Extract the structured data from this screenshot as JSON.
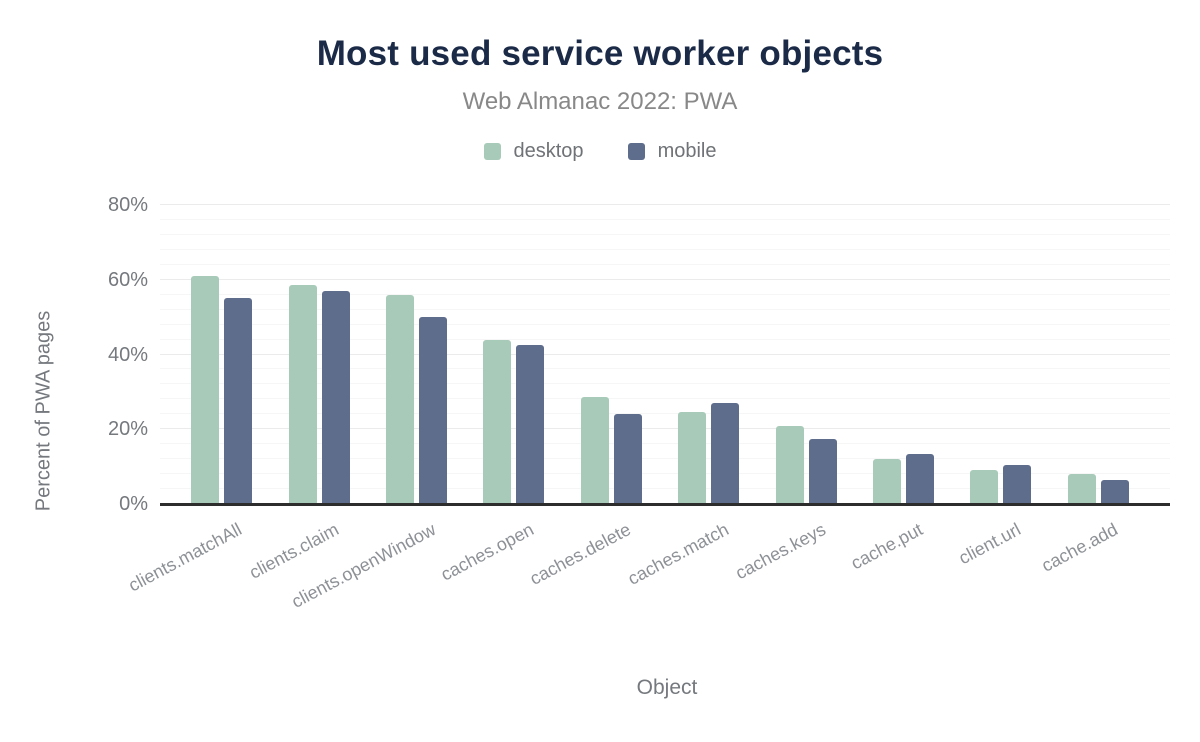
{
  "header": {
    "title": "Most used service worker objects",
    "subtitle": "Web Almanac 2022: PWA"
  },
  "palette": {
    "title_text": "#1b2a47",
    "subtitle_text": "#888888",
    "legend_text": "#6f7276",
    "axis_tick_text": "#75797e",
    "category_text": "#8d9196",
    "axis_title_text": "#75797e",
    "axis_line": "#2d2d2d",
    "grid_major": "#ebebeb",
    "grid_minor": "#f6f6f6",
    "desktop": "#a8cab9",
    "mobile": "#5e6d8c"
  },
  "chart_data": {
    "type": "bar",
    "title": "Most used service worker objects",
    "subtitle": "Web Almanac 2022: PWA",
    "categories": [
      "clients.matchAll",
      "clients.claim",
      "clients.openWindow",
      "caches.open",
      "caches.delete",
      "caches.match",
      "caches.keys",
      "cache.put",
      "client.url",
      "cache.add"
    ],
    "series": [
      {
        "name": "desktop",
        "color": "#a8cab9",
        "values": [
          61,
          58.5,
          56,
          44,
          28.5,
          24.5,
          21,
          12,
          9,
          8
        ]
      },
      {
        "name": "mobile",
        "color": "#5e6d8c",
        "values": [
          55,
          57,
          50,
          42.5,
          24,
          27,
          17.5,
          13.5,
          10.5,
          6.5
        ]
      }
    ],
    "xlabel": "Object",
    "ylabel": "Percent of PWA pages",
    "ylim": [
      0,
      80
    ],
    "yticks": [
      0,
      20,
      40,
      60,
      80
    ],
    "ytick_suffix": "%",
    "grid": {
      "visible": true,
      "major_step": 20,
      "minor_step": 4
    },
    "legend_position": "top",
    "category_label_rotation_deg": -28
  }
}
